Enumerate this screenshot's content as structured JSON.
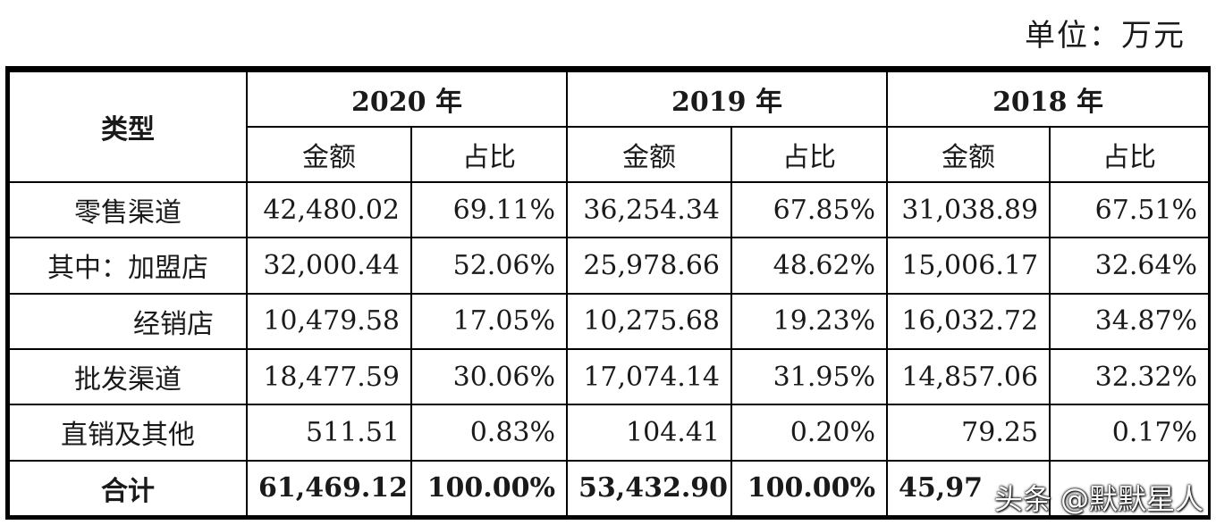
{
  "unit_label": "单位：万元",
  "header": {
    "type_label": "类型",
    "years": [
      "2020 年",
      "2019 年",
      "2018 年"
    ],
    "amount_label": "金额",
    "share_label": "占比"
  },
  "rows": [
    {
      "label": "零售渠道",
      "values": [
        "42,480.02",
        "69.11%",
        "36,254.34",
        "67.85%",
        "31,038.89",
        "67.51%"
      ]
    },
    {
      "label": "其中：加盟店",
      "values": [
        "32,000.44",
        "52.06%",
        "25,978.66",
        "48.62%",
        "15,006.17",
        "32.64%"
      ]
    },
    {
      "label": "经销店",
      "values": [
        "10,479.58",
        "17.05%",
        "10,275.68",
        "19.23%",
        "16,032.72",
        "34.87%"
      ]
    },
    {
      "label": "批发渠道",
      "values": [
        "18,477.59",
        "30.06%",
        "17,074.14",
        "31.95%",
        "14,857.06",
        "32.32%"
      ]
    },
    {
      "label": "直销及其他",
      "values": [
        "511.51",
        "0.83%",
        "104.41",
        "0.20%",
        "79.25",
        "0.17%"
      ]
    },
    {
      "label": "合计",
      "values": [
        "61,469.12",
        "100.00%",
        "53,432.90",
        "100.00%",
        "45,97",
        ""
      ]
    }
  ],
  "watermark": "头条 @默默星人"
}
